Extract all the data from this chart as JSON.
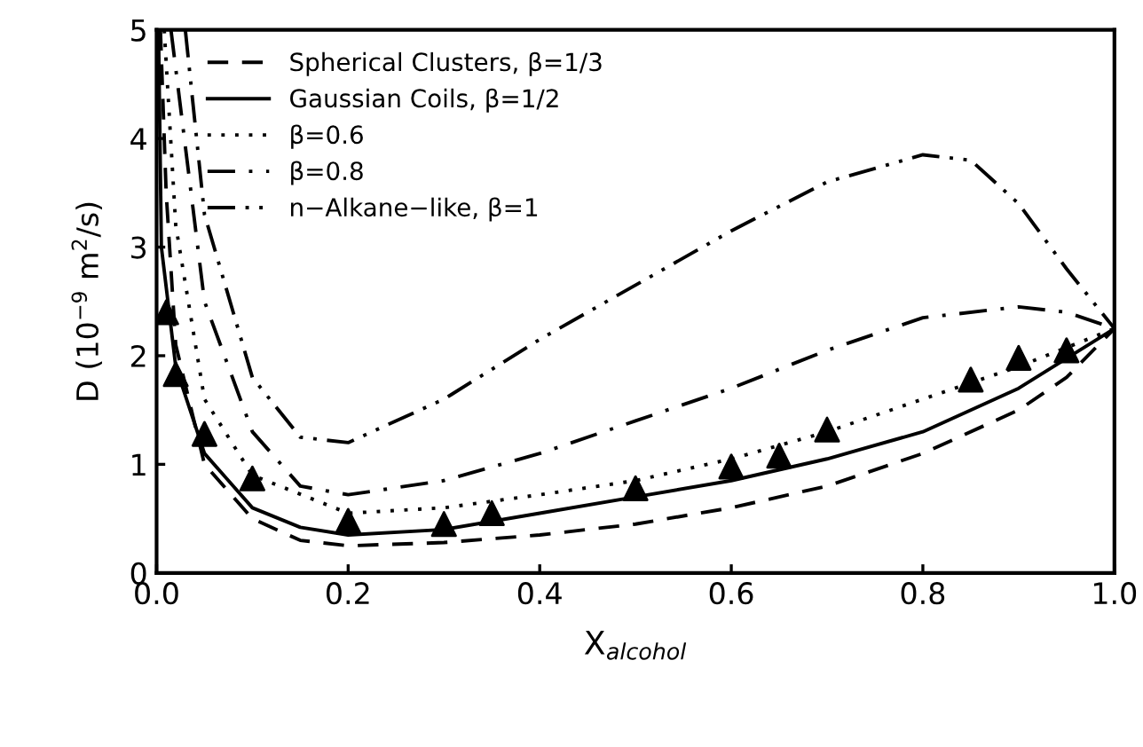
{
  "chart_data": {
    "type": "line",
    "xlabel": "X$_{alcohol}$",
    "ylabel": "D (10$^{−9}$ m$^{2}$/s)",
    "xlim": [
      0,
      1
    ],
    "ylim": [
      0,
      5
    ],
    "xticks": [
      {
        "value": 0,
        "label": "0.0"
      },
      {
        "value": 0.2,
        "label": "0.2"
      },
      {
        "value": 0.4,
        "label": "0.4"
      },
      {
        "value": 0.6,
        "label": "0.6"
      },
      {
        "value": 0.8,
        "label": "0.8"
      },
      {
        "value": 1,
        "label": "1.0"
      }
    ],
    "yticks": [
      0,
      1,
      2,
      3,
      4,
      5
    ],
    "grid": false,
    "legend": "top left",
    "series": [
      {
        "name": "Spherical Clusters, β=1/3",
        "color": "#000000",
        "line_style": "dashed",
        "marker": "none",
        "x": [
          0.004,
          0.01,
          0.02,
          0.05,
          0.1,
          0.15,
          0.2,
          0.3,
          0.4,
          0.5,
          0.6,
          0.7,
          0.8,
          0.9,
          0.95,
          1.0
        ],
        "values": [
          5.0,
          3.5,
          2.1,
          1.0,
          0.5,
          0.3,
          0.25,
          0.28,
          0.35,
          0.45,
          0.6,
          0.8,
          1.1,
          1.5,
          1.8,
          2.25
        ]
      },
      {
        "name": "Gaussian Coils, β=1/2",
        "color": "#000000",
        "line_style": "solid",
        "marker": "none",
        "x": [
          0.002,
          0.005,
          0.02,
          0.05,
          0.1,
          0.15,
          0.2,
          0.3,
          0.4,
          0.5,
          0.6,
          0.7,
          0.8,
          0.9,
          1.0
        ],
        "values": [
          5.0,
          3.0,
          1.9,
          1.1,
          0.6,
          0.42,
          0.35,
          0.4,
          0.55,
          0.7,
          0.85,
          1.05,
          1.3,
          1.7,
          2.25
        ]
      },
      {
        "name": "β=0.6",
        "color": "#000000",
        "line_style": "dotted",
        "marker": "none",
        "x": [
          0.008,
          0.02,
          0.05,
          0.1,
          0.2,
          0.3,
          0.4,
          0.5,
          0.6,
          0.7,
          0.8,
          0.9,
          1.0
        ],
        "values": [
          5.0,
          3.2,
          1.6,
          0.9,
          0.55,
          0.6,
          0.72,
          0.85,
          1.05,
          1.3,
          1.6,
          1.9,
          2.25
        ]
      },
      {
        "name": "β=0.8",
        "color": "#000000",
        "line_style": "dashdot",
        "marker": "none",
        "x": [
          0.015,
          0.05,
          0.1,
          0.15,
          0.2,
          0.3,
          0.4,
          0.5,
          0.6,
          0.7,
          0.8,
          0.9,
          0.95,
          1.0
        ],
        "values": [
          5.0,
          2.5,
          1.3,
          0.8,
          0.72,
          0.85,
          1.1,
          1.4,
          1.7,
          2.05,
          2.35,
          2.45,
          2.4,
          2.25
        ]
      },
      {
        "name": "n−Alkane−like, β=1",
        "color": "#000000",
        "line_style": "dashdotdot",
        "marker": "none",
        "x": [
          0.03,
          0.05,
          0.1,
          0.15,
          0.2,
          0.3,
          0.4,
          0.5,
          0.6,
          0.7,
          0.8,
          0.85,
          0.9,
          0.95,
          1.0
        ],
        "values": [
          5.0,
          3.3,
          1.8,
          1.25,
          1.2,
          1.6,
          2.15,
          2.65,
          3.15,
          3.6,
          3.85,
          3.8,
          3.4,
          2.8,
          2.25
        ]
      },
      {
        "type": "scatter",
        "color": "#000000",
        "marker": "triangle",
        "x": [
          0.01,
          0.02,
          0.05,
          0.1,
          0.2,
          0.3,
          0.35,
          0.5,
          0.6,
          0.65,
          0.7,
          0.85,
          0.9,
          0.95
        ],
        "values": [
          2.4,
          1.83,
          1.28,
          0.87,
          0.48,
          0.45,
          0.55,
          0.78,
          0.98,
          1.08,
          1.32,
          1.78,
          1.98,
          2.05
        ]
      }
    ]
  }
}
